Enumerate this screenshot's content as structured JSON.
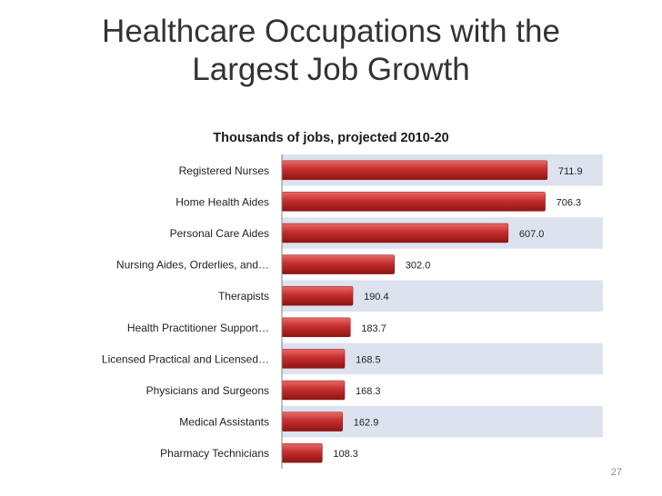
{
  "slide": {
    "title_line1": "Healthcare Occupations with the",
    "title_line2": "Largest Job Growth",
    "page_number": "27"
  },
  "colors": {
    "bar": "#c22b2b",
    "band": "#dce3ef",
    "axis": "#808080"
  },
  "chart_data": {
    "type": "bar",
    "orientation": "horizontal",
    "title": "Thousands of jobs, projected 2010-20",
    "categories": [
      "Registered Nurses",
      "Home Health Aides",
      "Personal Care Aides",
      "Nursing Aides, Orderlies, and…",
      "Therapists",
      "Health Practitioner Support…",
      "Licensed Practical and Licensed…",
      "Physicians and Surgeons",
      "Medical Assistants",
      "Pharmacy Technicians"
    ],
    "values": [
      711.9,
      706.3,
      607.0,
      302.0,
      190.4,
      183.7,
      168.5,
      168.3,
      162.9,
      108.3
    ],
    "data_labels": [
      "711.9",
      "706.3",
      "607.0",
      "302.0",
      "190.4",
      "183.7",
      "168.5",
      "168.3",
      "162.9",
      "108.3"
    ],
    "xlim": [
      0,
      800
    ],
    "legend": "none",
    "grid": false
  }
}
